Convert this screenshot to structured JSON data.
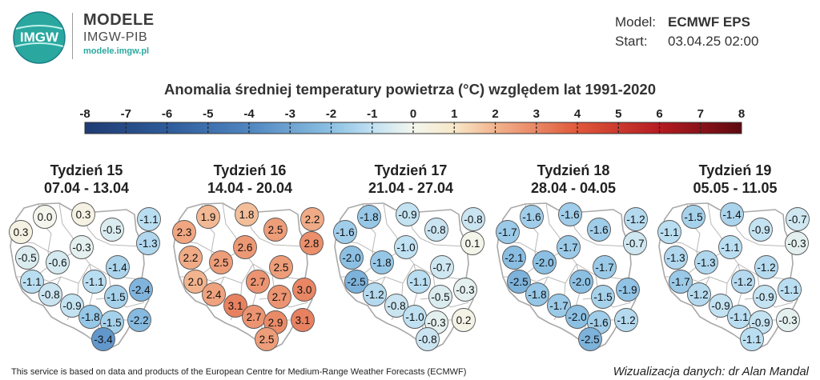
{
  "header": {
    "brand_title": "MODELE",
    "brand_subtitle": "IMGW-PIB",
    "brand_url": "modele.imgw.pl",
    "logo_text": "IMGW",
    "model_label": "Model:",
    "model_value": "ECMWF EPS",
    "start_label": "Start:",
    "start_value": "03.04.25 02:00"
  },
  "title": "Anomalia średniej temperatury powietrza (°C) względem lat 1991-2020",
  "scale": {
    "ticks": [
      "-8",
      "-7",
      "-6",
      "-5",
      "-4",
      "-3",
      "-2",
      "-1",
      "0",
      "1",
      "2",
      "3",
      "4",
      "5",
      "6",
      "7",
      "8"
    ],
    "stops": [
      {
        "v": -8,
        "c": "#1f3b73"
      },
      {
        "v": -6,
        "c": "#2e5b9a"
      },
      {
        "v": -4,
        "c": "#4f86c0"
      },
      {
        "v": -2,
        "c": "#8cc0e3"
      },
      {
        "v": -1,
        "c": "#bfe1f2"
      },
      {
        "v": 0,
        "c": "#f4f6ee"
      },
      {
        "v": 1,
        "c": "#f7e8c8"
      },
      {
        "v": 2,
        "c": "#f2b48e"
      },
      {
        "v": 4,
        "c": "#e0583a"
      },
      {
        "v": 6,
        "c": "#b51b22"
      },
      {
        "v": 8,
        "c": "#5e0a10"
      }
    ]
  },
  "weeks": [
    {
      "title": "Tydzień 15",
      "dates": "07.04 - 13.04",
      "values": [
        "0.0",
        "0.3",
        "0.3",
        "-0.5",
        "-1.1",
        "-1.3",
        "-0.3",
        "-0.5",
        "-0.6",
        "-1.4",
        "-1.1",
        "-1.1",
        "-0.8",
        "-1.5",
        "-2.4",
        "-0.9",
        "-1.8",
        "-1.5",
        "-2.2",
        "-3.4"
      ]
    },
    {
      "title": "Tydzień 16",
      "dates": "14.04 - 20.04",
      "values": [
        "1.9",
        "1.8",
        "2.3",
        "2.5",
        "2.2",
        "2.8",
        "2.6",
        "2.2",
        "2.5",
        "2.5",
        "2.0",
        "2.7",
        "2.4",
        "2.7",
        "3.0",
        "3.1",
        "2.7",
        "2.9",
        "3.1",
        "2.5"
      ]
    },
    {
      "title": "Tydzień 17",
      "dates": "21.04 - 27.04",
      "values": [
        "-1.8",
        "-0.9",
        "-1.6",
        "-0.8",
        "-0.8",
        "0.1",
        "-1.0",
        "-2.0",
        "-1.8",
        "-0.7",
        "-2.5",
        "-1.1",
        "-1.2",
        "-0.5",
        "-0.3",
        "-0.8",
        "-1.0",
        "-0.3",
        "0.2",
        "-0.8"
      ]
    },
    {
      "title": "Tydzień 18",
      "dates": "28.04 - 04.05",
      "values": [
        "-1.6",
        "-1.6",
        "-1.7",
        "-1.6",
        "-1.2",
        "-0.7",
        "-1.7",
        "-2.1",
        "-2.0",
        "-1.7",
        "-2.5",
        "-2.0",
        "-1.8",
        "-1.5",
        "-1.9",
        "-1.7",
        "-2.0",
        "-1.6",
        "-1.2",
        "-2.5"
      ]
    },
    {
      "title": "Tydzień 19",
      "dates": "05.05 - 11.05",
      "values": [
        "-1.5",
        "-1.4",
        "-1.1",
        "-0.9",
        "-0.7",
        "-0.3",
        "-1.1",
        "-1.3",
        "-1.3",
        "-1.2",
        "-1.7",
        "-1.2",
        "-1.2",
        "-0.9",
        "-1.1",
        "-0.9",
        "-1.1",
        "-0.9",
        "-0.3",
        "-1.1"
      ]
    }
  ],
  "footer": {
    "note": "This service is based on data and products of the European Centre for Medium-Range Weather Forecasts (ECMWF)",
    "credit": "Wizualizacja danych: dr Alan Mandal"
  }
}
